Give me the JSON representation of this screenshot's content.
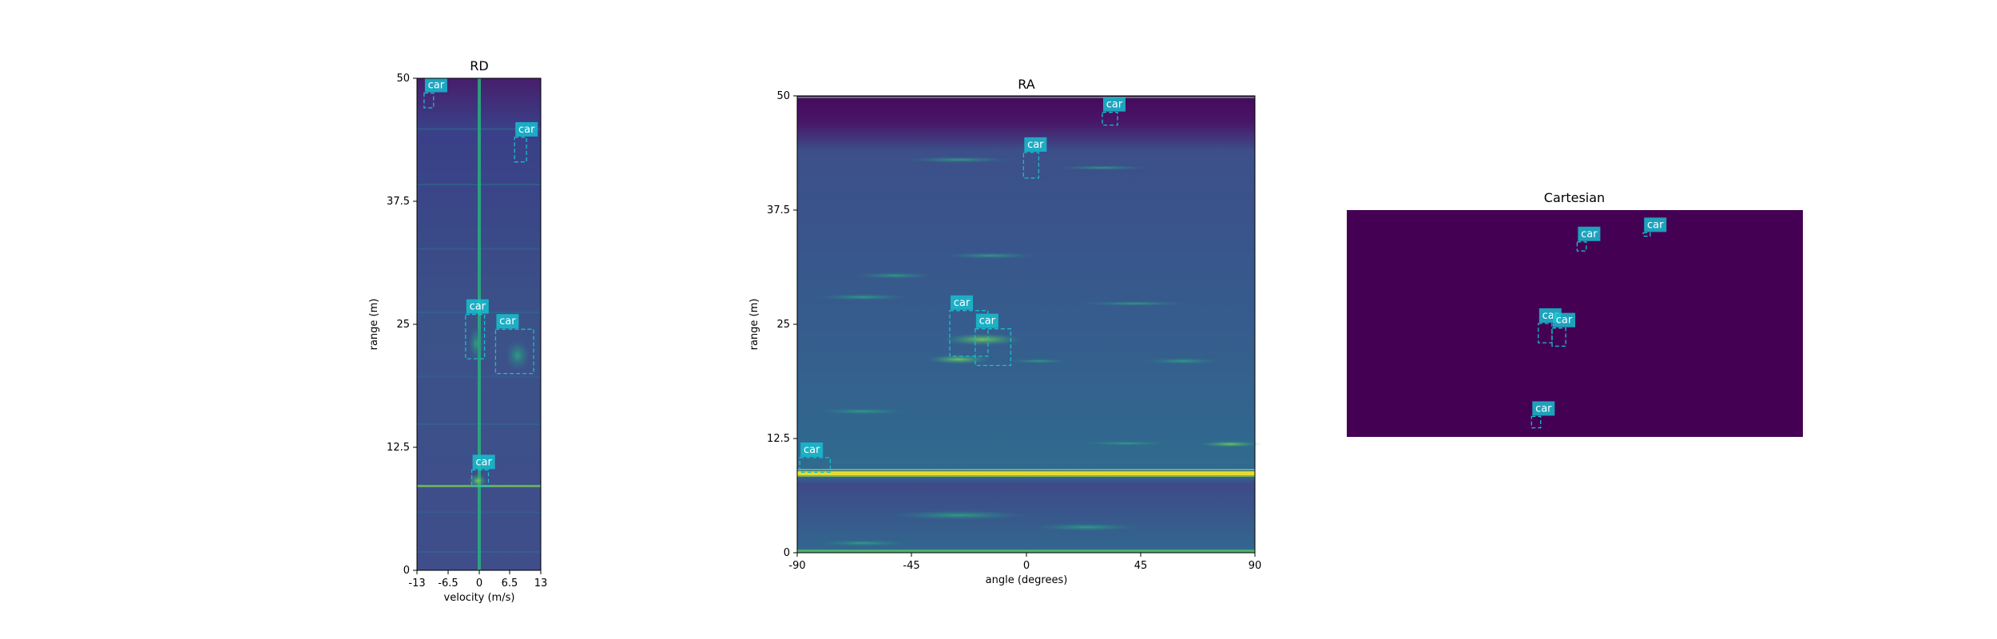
{
  "colors": {
    "detection": "#17becf",
    "viridis_bg": "#3b528b",
    "viridis_dark": "#440154",
    "viridis_bright": "#fde725",
    "cartesian_bg": "#440154"
  },
  "chart_data": [
    {
      "id": "rd",
      "type": "heatmap",
      "title": "RD",
      "xlabel": "velocity (m/s)",
      "ylabel": "range (m)",
      "xlim": [
        -13,
        13
      ],
      "ylim": [
        0,
        50
      ],
      "xticks": [
        -13,
        -6.5,
        0,
        6.5,
        13
      ],
      "xtick_labels": [
        "-13",
        "-6.5",
        "0",
        "6.5",
        "13"
      ],
      "yticks": [
        0,
        12.5,
        25,
        37.5,
        50
      ],
      "ytick_labels": [
        "0",
        "12.5",
        "25",
        "37.5",
        "50"
      ],
      "detections": [
        {
          "label": "car",
          "x0": -11.5,
          "x1": -9.5,
          "y0": 47.0,
          "y1": 48.5
        },
        {
          "label": "car",
          "x0": 7.5,
          "x1": 10.0,
          "y0": 41.5,
          "y1": 44.0
        },
        {
          "label": "car",
          "x0": -2.8,
          "x1": 1.2,
          "y0": 21.5,
          "y1": 26.0
        },
        {
          "label": "car",
          "x0": 3.5,
          "x1": 11.5,
          "y0": 20.0,
          "y1": 24.5
        },
        {
          "label": "car",
          "x0": -1.5,
          "x1": 2.0,
          "y0": 8.5,
          "y1": 10.2
        }
      ]
    },
    {
      "id": "ra",
      "type": "heatmap",
      "title": "RA",
      "xlabel": "angle (degrees)",
      "ylabel": "range (m)",
      "xlim": [
        -90,
        90
      ],
      "ylim": [
        0,
        50
      ],
      "xticks": [
        -90,
        -45,
        0,
        45,
        90
      ],
      "xtick_labels": [
        "-90",
        "-45",
        "0",
        "45",
        "90"
      ],
      "yticks": [
        0,
        12.5,
        25,
        37.5,
        50
      ],
      "ytick_labels": [
        "0",
        "12.5",
        "25",
        "37.5",
        "50"
      ],
      "detections": [
        {
          "label": "car",
          "x0": 30,
          "x1": 36,
          "y0": 46.8,
          "y1": 48.2
        },
        {
          "label": "car",
          "x0": -1,
          "x1": 5,
          "y0": 41.0,
          "y1": 43.8
        },
        {
          "label": "car",
          "x0": -30,
          "x1": -15,
          "y0": 21.5,
          "y1": 26.5
        },
        {
          "label": "car",
          "x0": -20,
          "x1": -6,
          "y0": 20.5,
          "y1": 24.5
        },
        {
          "label": "car",
          "x0": -89,
          "x1": -77,
          "y0": 8.8,
          "y1": 10.4
        }
      ]
    },
    {
      "id": "cartesian",
      "type": "heatmap",
      "title": "Cartesian",
      "xlim": [
        0,
        100
      ],
      "ylim": [
        0,
        100
      ],
      "detections": [
        {
          "label": "car",
          "x0": 50.5,
          "x1": 52.5,
          "y0": 82,
          "y1": 86
        },
        {
          "label": "car",
          "x0": 65,
          "x1": 66.5,
          "y0": 88.5,
          "y1": 90
        },
        {
          "label": "car",
          "x0": 42,
          "x1": 45,
          "y0": 41.5,
          "y1": 50
        },
        {
          "label": "car",
          "x0": 45,
          "x1": 48,
          "y0": 40,
          "y1": 48
        },
        {
          "label": "car",
          "x0": 40.5,
          "x1": 42.5,
          "y0": 4,
          "y1": 9
        }
      ]
    }
  ]
}
